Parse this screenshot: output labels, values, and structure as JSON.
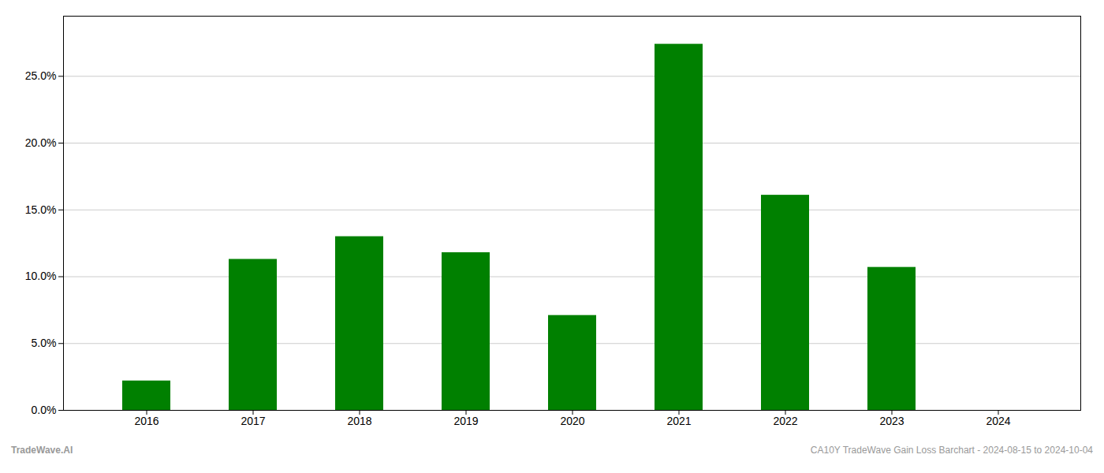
{
  "chart_data": {
    "type": "bar",
    "categories": [
      "2016",
      "2017",
      "2018",
      "2019",
      "2020",
      "2021",
      "2022",
      "2023",
      "2024"
    ],
    "values": [
      0.022,
      0.113,
      0.13,
      0.118,
      0.071,
      0.274,
      0.161,
      0.107,
      0.0
    ],
    "color": "#008000",
    "ylim": [
      0,
      0.295
    ],
    "yticks": [
      {
        "value": 0.0,
        "label": "0.0%"
      },
      {
        "value": 0.05,
        "label": "5.0%"
      },
      {
        "value": 0.1,
        "label": "10.0%"
      },
      {
        "value": 0.15,
        "label": "15.0%"
      },
      {
        "value": 0.2,
        "label": "20.0%"
      },
      {
        "value": 0.25,
        "label": "25.0%"
      }
    ],
    "grid": true,
    "annotations": [
      "TradeWave.AI",
      "CA10Y TradeWave Gain Loss Barchart - 2024-08-15 to 2024-10-04"
    ]
  }
}
